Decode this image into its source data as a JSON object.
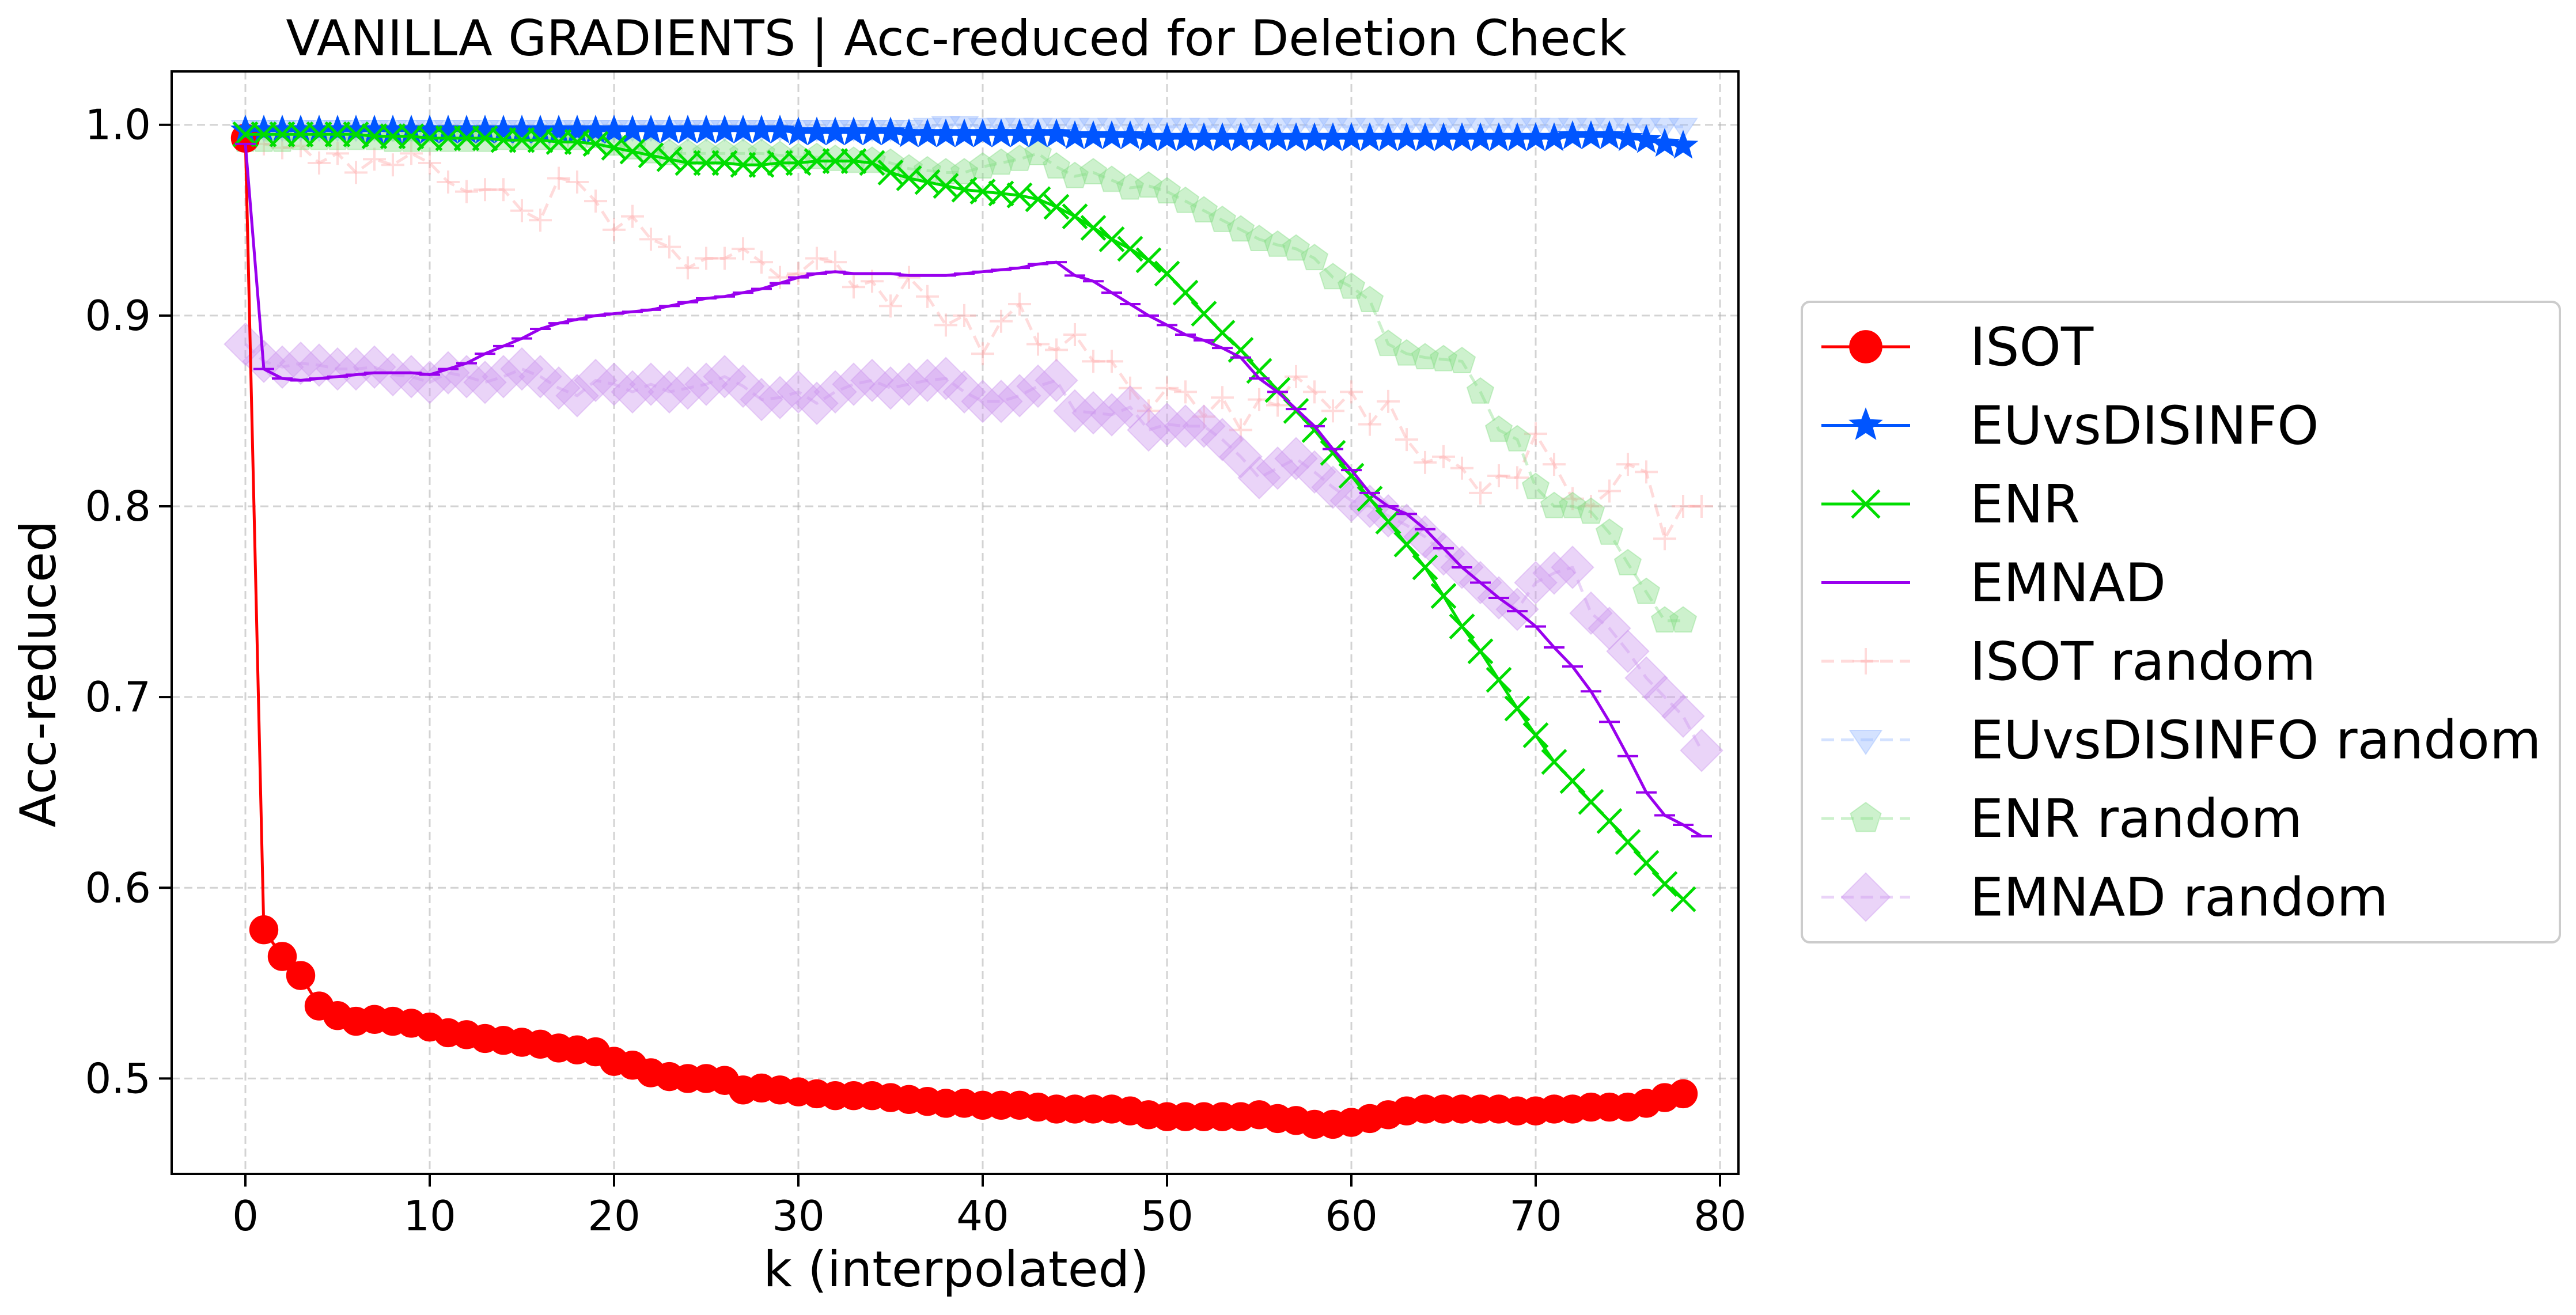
{
  "chart_data": {
    "type": "line",
    "title": "VANILLA GRADIENTS | Acc-reduced for Deletion Check",
    "xlabel": "k (interpolated)",
    "ylabel": "Acc-reduced",
    "xlim": [
      -4,
      81
    ],
    "ylim": [
      0.45,
      1.028
    ],
    "xticks": [
      0,
      10,
      20,
      30,
      40,
      50,
      60,
      70,
      80
    ],
    "yticks": [
      0.5,
      0.6,
      0.7,
      0.8,
      0.9,
      1.0
    ],
    "xtick_labels": [
      "0",
      "10",
      "20",
      "30",
      "40",
      "50",
      "60",
      "70",
      "80"
    ],
    "ytick_labels": [
      "0.5",
      "0.6",
      "0.7",
      "0.8",
      "0.9",
      "1.0"
    ],
    "grid": true,
    "legend_position": "right-outside",
    "x_step": 1,
    "series": [
      {
        "name": "ISOT",
        "color": "#ff0000",
        "marker": "circle",
        "line": "solid",
        "values": [
          0.993,
          0.578,
          0.564,
          0.554,
          0.538,
          0.533,
          0.53,
          0.531,
          0.53,
          0.529,
          0.527,
          0.524,
          0.523,
          0.521,
          0.52,
          0.519,
          0.518,
          0.516,
          0.515,
          0.514,
          0.509,
          0.507,
          0.503,
          0.501,
          0.5,
          0.5,
          0.499,
          0.494,
          0.495,
          0.494,
          0.493,
          0.492,
          0.491,
          0.491,
          0.491,
          0.49,
          0.489,
          0.488,
          0.487,
          0.487,
          0.486,
          0.486,
          0.486,
          0.485,
          0.484,
          0.484,
          0.484,
          0.484,
          0.483,
          0.481,
          0.48,
          0.48,
          0.48,
          0.48,
          0.48,
          0.481,
          0.479,
          0.478,
          0.476,
          0.476,
          0.477,
          0.479,
          0.481,
          0.483,
          0.484,
          0.484,
          0.484,
          0.484,
          0.484,
          0.483,
          0.483,
          0.484,
          0.484,
          0.485,
          0.485,
          0.485,
          0.487,
          0.49,
          0.492
        ]
      },
      {
        "name": "EUvsDISINFO",
        "color": "#0055ff",
        "marker": "star",
        "line": "solid",
        "values": [
          0.997,
          0.997,
          0.997,
          0.997,
          0.997,
          0.997,
          0.997,
          0.997,
          0.997,
          0.997,
          0.997,
          0.997,
          0.997,
          0.997,
          0.997,
          0.997,
          0.997,
          0.997,
          0.997,
          0.997,
          0.997,
          0.997,
          0.997,
          0.997,
          0.997,
          0.997,
          0.997,
          0.997,
          0.997,
          0.997,
          0.996,
          0.996,
          0.996,
          0.996,
          0.996,
          0.996,
          0.995,
          0.995,
          0.995,
          0.995,
          0.995,
          0.995,
          0.995,
          0.995,
          0.995,
          0.994,
          0.994,
          0.994,
          0.994,
          0.993,
          0.993,
          0.993,
          0.993,
          0.993,
          0.993,
          0.993,
          0.993,
          0.993,
          0.993,
          0.993,
          0.993,
          0.993,
          0.993,
          0.993,
          0.993,
          0.993,
          0.993,
          0.993,
          0.993,
          0.993,
          0.993,
          0.993,
          0.994,
          0.994,
          0.994,
          0.993,
          0.992,
          0.99,
          0.989
        ]
      },
      {
        "name": "ENR",
        "color": "#00dd00",
        "marker": "x",
        "line": "solid",
        "values": [
          0.995,
          0.995,
          0.995,
          0.995,
          0.995,
          0.995,
          0.995,
          0.994,
          0.994,
          0.994,
          0.993,
          0.993,
          0.993,
          0.993,
          0.992,
          0.992,
          0.992,
          0.991,
          0.991,
          0.99,
          0.988,
          0.986,
          0.984,
          0.982,
          0.98,
          0.98,
          0.98,
          0.979,
          0.979,
          0.98,
          0.98,
          0.981,
          0.981,
          0.981,
          0.98,
          0.975,
          0.972,
          0.97,
          0.968,
          0.966,
          0.965,
          0.964,
          0.963,
          0.961,
          0.957,
          0.952,
          0.946,
          0.94,
          0.935,
          0.929,
          0.922,
          0.912,
          0.901,
          0.891,
          0.882,
          0.871,
          0.861,
          0.85,
          0.84,
          0.828,
          0.816,
          0.804,
          0.792,
          0.78,
          0.768,
          0.753,
          0.737,
          0.724,
          0.709,
          0.694,
          0.68,
          0.666,
          0.656,
          0.645,
          0.635,
          0.624,
          0.613,
          0.602,
          0.594
        ]
      },
      {
        "name": "EMNAD",
        "color": "#9900ee",
        "marker": "hline",
        "line": "solid",
        "values": [
          0.99,
          0.872,
          0.867,
          0.866,
          0.867,
          0.868,
          0.869,
          0.87,
          0.87,
          0.87,
          0.869,
          0.872,
          0.875,
          0.88,
          0.884,
          0.888,
          0.893,
          0.896,
          0.898,
          0.9,
          0.901,
          0.902,
          0.903,
          0.905,
          0.907,
          0.909,
          0.91,
          0.912,
          0.914,
          0.917,
          0.92,
          0.922,
          0.923,
          0.922,
          0.922,
          0.922,
          0.921,
          0.921,
          0.921,
          0.922,
          0.923,
          0.924,
          0.925,
          0.927,
          0.928,
          0.921,
          0.918,
          0.912,
          0.906,
          0.9,
          0.895,
          0.89,
          0.887,
          0.883,
          0.878,
          0.867,
          0.86,
          0.851,
          0.842,
          0.83,
          0.819,
          0.807,
          0.8,
          0.796,
          0.788,
          0.778,
          0.768,
          0.76,
          0.752,
          0.745,
          0.737,
          0.726,
          0.716,
          0.703,
          0.687,
          0.669,
          0.65,
          0.638,
          0.633,
          0.627
        ]
      },
      {
        "name": "ISOT random",
        "color": "#ffaaaa",
        "marker": "plus",
        "line": "dashed",
        "values": [
          0.994,
          0.99,
          0.988,
          0.989,
          0.98,
          0.985,
          0.975,
          0.982,
          0.979,
          0.985,
          0.98,
          0.97,
          0.965,
          0.966,
          0.966,
          0.955,
          0.95,
          0.972,
          0.97,
          0.96,
          0.945,
          0.952,
          0.94,
          0.936,
          0.925,
          0.93,
          0.93,
          0.935,
          0.928,
          0.92,
          0.922,
          0.93,
          0.928,
          0.915,
          0.918,
          0.905,
          0.92,
          0.91,
          0.895,
          0.9,
          0.88,
          0.897,
          0.906,
          0.885,
          0.882,
          0.89,
          0.876,
          0.876,
          0.862,
          0.85,
          0.862,
          0.86,
          0.847,
          0.857,
          0.84,
          0.856,
          0.853,
          0.868,
          0.86,
          0.85,
          0.86,
          0.843,
          0.855,
          0.835,
          0.823,
          0.826,
          0.82,
          0.807,
          0.816,
          0.815,
          0.838,
          0.822,
          0.804,
          0.8,
          0.808,
          0.822,
          0.818,
          0.783,
          0.8,
          0.8
        ]
      },
      {
        "name": "EUvsDISINFO random",
        "color": "#99bbff",
        "marker": "triangle-down",
        "line": "dashed",
        "values": [
          0.998,
          0.998,
          0.998,
          0.998,
          0.998,
          0.998,
          0.998,
          0.998,
          0.998,
          0.998,
          0.998,
          0.998,
          0.998,
          0.998,
          0.998,
          0.998,
          0.998,
          0.998,
          0.998,
          0.998,
          0.998,
          0.998,
          0.998,
          0.998,
          0.998,
          0.998,
          0.998,
          0.998,
          0.998,
          0.998,
          0.998,
          0.998,
          0.998,
          0.998,
          0.998,
          0.998,
          0.998,
          0.999,
          1.0,
          1.0,
          0.999,
          0.999,
          0.999,
          0.999,
          0.999,
          0.999,
          0.999,
          0.999,
          0.999,
          0.999,
          0.999,
          0.999,
          0.999,
          0.999,
          0.999,
          0.999,
          0.999,
          0.999,
          0.999,
          0.999,
          0.999,
          0.999,
          0.999,
          0.999,
          0.999,
          0.999,
          0.999,
          0.999,
          0.999,
          0.999,
          0.999,
          0.999,
          0.999,
          0.999,
          0.999,
          0.999,
          0.999,
          0.999,
          0.999
        ]
      },
      {
        "name": "ENR random",
        "color": "#88dd88",
        "marker": "pentagon",
        "line": "dashed",
        "values": [
          0.992,
          0.992,
          0.992,
          0.993,
          0.993,
          0.993,
          0.993,
          0.993,
          0.992,
          0.992,
          0.992,
          0.992,
          0.992,
          0.992,
          0.993,
          0.993,
          0.993,
          0.993,
          0.993,
          0.994,
          0.99,
          0.988,
          0.986,
          0.985,
          0.985,
          0.985,
          0.985,
          0.985,
          0.985,
          0.984,
          0.983,
          0.983,
          0.982,
          0.981,
          0.981,
          0.98,
          0.977,
          0.976,
          0.975,
          0.975,
          0.978,
          0.98,
          0.982,
          0.985,
          0.978,
          0.973,
          0.975,
          0.971,
          0.967,
          0.968,
          0.965,
          0.96,
          0.955,
          0.95,
          0.945,
          0.94,
          0.937,
          0.935,
          0.93,
          0.92,
          0.915,
          0.908,
          0.885,
          0.88,
          0.878,
          0.877,
          0.876,
          0.86,
          0.84,
          0.835,
          0.81,
          0.8,
          0.8,
          0.797,
          0.786,
          0.77,
          0.755,
          0.74,
          0.74
        ]
      },
      {
        "name": "EMNAD random",
        "color": "#cc99ee",
        "marker": "diamond",
        "line": "dashed",
        "values": [
          0.885,
          0.876,
          0.873,
          0.875,
          0.874,
          0.872,
          0.872,
          0.873,
          0.869,
          0.868,
          0.865,
          0.87,
          0.868,
          0.865,
          0.868,
          0.872,
          0.868,
          0.862,
          0.858,
          0.866,
          0.864,
          0.86,
          0.864,
          0.86,
          0.862,
          0.864,
          0.868,
          0.863,
          0.856,
          0.857,
          0.86,
          0.854,
          0.86,
          0.864,
          0.866,
          0.862,
          0.864,
          0.866,
          0.867,
          0.86,
          0.855,
          0.855,
          0.858,
          0.863,
          0.866,
          0.85,
          0.849,
          0.848,
          0.852,
          0.84,
          0.843,
          0.842,
          0.842,
          0.835,
          0.826,
          0.815,
          0.82,
          0.825,
          0.818,
          0.81,
          0.803,
          0.8,
          0.795,
          0.79,
          0.784,
          0.775,
          0.768,
          0.76,
          0.752,
          0.746,
          0.76,
          0.765,
          0.768,
          0.744,
          0.736,
          0.724,
          0.71,
          0.7,
          0.69,
          0.672
        ]
      }
    ]
  }
}
